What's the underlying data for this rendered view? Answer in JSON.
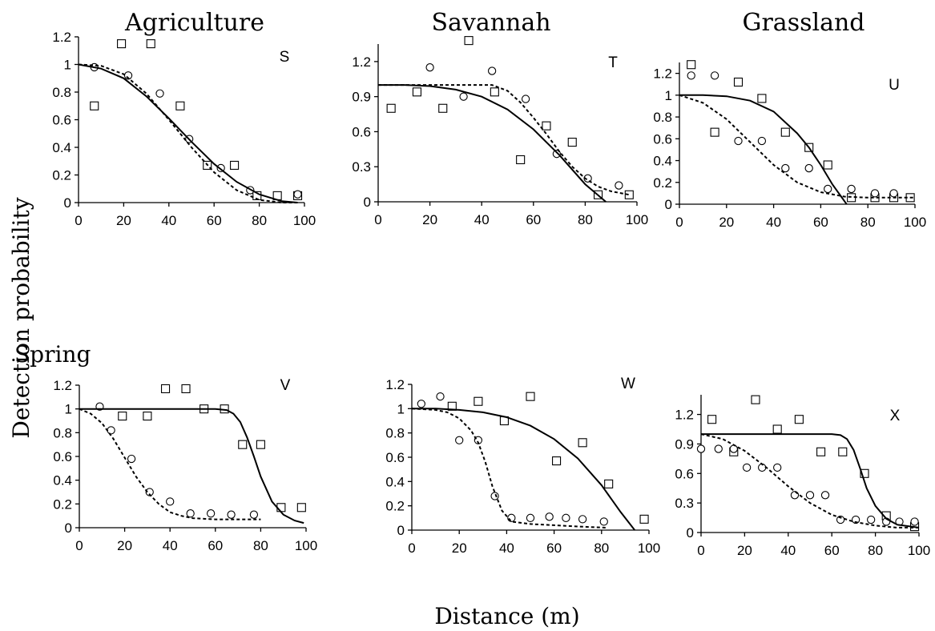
{
  "figure": {
    "column_headers": [
      "Agriculture",
      "Savannah",
      "Grassland"
    ],
    "row_header": "Spring",
    "ylabel": "Detection probability",
    "xlabel": "Distance (m)"
  },
  "chart_data": [
    {
      "type": "scatter",
      "panel": "S",
      "ylim": [
        0,
        1.2
      ],
      "yticks": [
        "0",
        "0.2",
        "0.4",
        "0.6",
        "0.8",
        "1",
        "1.2"
      ],
      "xlim": [
        0,
        100
      ],
      "xticks": [
        "0",
        "20",
        "40",
        "60",
        "80",
        "100"
      ],
      "series": [
        {
          "marker": "square",
          "x": [
            7,
            19,
            32,
            45,
            57,
            69,
            79,
            88,
            97
          ],
          "y": [
            0.7,
            1.15,
            1.15,
            0.7,
            0.27,
            0.27,
            0.05,
            0.05,
            0.05
          ]
        },
        {
          "marker": "circle",
          "x": [
            7,
            22,
            36,
            49,
            63,
            76,
            97
          ],
          "y": [
            0.98,
            0.92,
            0.79,
            0.46,
            0.25,
            0.09,
            0.06
          ]
        },
        {
          "line": "solid",
          "x": [
            0,
            10,
            20,
            30,
            40,
            50,
            60,
            70,
            80,
            90,
            97
          ],
          "y": [
            1.0,
            0.97,
            0.9,
            0.77,
            0.61,
            0.44,
            0.28,
            0.15,
            0.06,
            0.01,
            0.0
          ]
        },
        {
          "line": "dashed",
          "x": [
            0,
            10,
            20,
            30,
            40,
            50,
            60,
            70,
            80,
            90,
            97
          ],
          "y": [
            1.0,
            0.99,
            0.93,
            0.79,
            0.6,
            0.4,
            0.22,
            0.09,
            0.02,
            0.0,
            0.0
          ]
        }
      ]
    },
    {
      "type": "scatter",
      "panel": "T",
      "ylim": [
        0,
        1.35
      ],
      "yticks": [
        "0",
        "0.3",
        "0.6",
        "0.9",
        "1.2"
      ],
      "xlim": [
        0,
        100
      ],
      "xticks": [
        "0",
        "20",
        "40",
        "60",
        "80",
        "100"
      ],
      "series": [
        {
          "marker": "square",
          "x": [
            5,
            15,
            25,
            35,
            45,
            55,
            65,
            75,
            85,
            97
          ],
          "y": [
            0.8,
            0.94,
            0.8,
            1.38,
            0.94,
            0.36,
            0.65,
            0.51,
            0.06,
            0.06
          ]
        },
        {
          "marker": "circle",
          "x": [
            20,
            33,
            44,
            57,
            69,
            81,
            93
          ],
          "y": [
            1.15,
            0.9,
            1.12,
            0.88,
            0.41,
            0.2,
            0.14
          ]
        },
        {
          "line": "solid",
          "x": [
            0,
            10,
            20,
            30,
            40,
            50,
            60,
            70,
            80,
            88
          ],
          "y": [
            1.0,
            1.0,
            0.99,
            0.96,
            0.9,
            0.79,
            0.62,
            0.4,
            0.15,
            0.0
          ]
        },
        {
          "line": "dashed",
          "x": [
            0,
            20,
            44,
            50,
            55,
            60,
            65,
            70,
            75,
            80,
            85,
            90,
            97
          ],
          "y": [
            1.0,
            1.0,
            1.0,
            0.95,
            0.85,
            0.72,
            0.58,
            0.43,
            0.3,
            0.2,
            0.13,
            0.09,
            0.06
          ]
        }
      ]
    },
    {
      "type": "scatter",
      "panel": "U",
      "ylim": [
        0,
        1.3
      ],
      "yticks": [
        "0",
        "0.2",
        "0.4",
        "0.6",
        "0.8",
        "1",
        "1.2"
      ],
      "xlim": [
        0,
        100
      ],
      "xticks": [
        "0",
        "20",
        "40",
        "60",
        "80",
        "100"
      ],
      "series": [
        {
          "marker": "square",
          "x": [
            5,
            15,
            25,
            35,
            45,
            55,
            63,
            73,
            83,
            91,
            98
          ],
          "y": [
            1.28,
            0.66,
            1.12,
            0.97,
            0.66,
            0.52,
            0.36,
            0.06,
            0.06,
            0.06,
            0.06
          ]
        },
        {
          "marker": "circle",
          "x": [
            5,
            15,
            25,
            35,
            45,
            55,
            63,
            73,
            83,
            91
          ],
          "y": [
            1.18,
            1.18,
            0.58,
            0.58,
            0.33,
            0.33,
            0.14,
            0.14,
            0.1,
            0.1
          ]
        },
        {
          "line": "solid",
          "x": [
            0,
            10,
            20,
            30,
            40,
            50,
            55,
            60,
            65,
            71
          ],
          "y": [
            1.0,
            1.0,
            0.99,
            0.95,
            0.85,
            0.65,
            0.52,
            0.36,
            0.18,
            0.0
          ]
        },
        {
          "line": "dashed",
          "x": [
            0,
            10,
            20,
            30,
            40,
            50,
            60,
            70,
            80,
            100
          ],
          "y": [
            1.0,
            0.93,
            0.78,
            0.57,
            0.36,
            0.2,
            0.11,
            0.07,
            0.06,
            0.06
          ]
        }
      ]
    },
    {
      "type": "scatter",
      "panel": "V",
      "ylim": [
        0,
        1.2
      ],
      "yticks": [
        "0",
        "0.2",
        "0.4",
        "0.6",
        "0.8",
        "1",
        "1.2"
      ],
      "xlim": [
        0,
        100
      ],
      "xticks": [
        "0",
        "20",
        "40",
        "60",
        "80",
        "100"
      ],
      "series": [
        {
          "marker": "square",
          "x": [
            19,
            30,
            38,
            47,
            55,
            64,
            72,
            80,
            89,
            98
          ],
          "y": [
            0.94,
            0.94,
            1.17,
            1.17,
            1.0,
            1.0,
            0.7,
            0.7,
            0.17,
            0.17
          ]
        },
        {
          "marker": "circle",
          "x": [
            9,
            14,
            23,
            31,
            40,
            49,
            58,
            67,
            77
          ],
          "y": [
            1.02,
            0.82,
            0.58,
            0.3,
            0.22,
            0.12,
            0.12,
            0.11,
            0.11
          ]
        },
        {
          "line": "solid",
          "x": [
            0,
            20,
            40,
            60,
            65,
            68,
            71,
            74,
            77,
            80,
            85,
            90,
            95,
            99
          ],
          "y": [
            1.0,
            1.0,
            1.0,
            1.0,
            0.99,
            0.96,
            0.89,
            0.76,
            0.6,
            0.43,
            0.22,
            0.11,
            0.06,
            0.04
          ]
        },
        {
          "line": "dashed",
          "x": [
            0,
            5,
            10,
            15,
            20,
            25,
            30,
            35,
            40,
            45,
            50,
            60,
            70,
            80
          ],
          "y": [
            1.0,
            0.96,
            0.88,
            0.75,
            0.59,
            0.43,
            0.3,
            0.2,
            0.13,
            0.1,
            0.08,
            0.07,
            0.07,
            0.07
          ]
        }
      ]
    },
    {
      "type": "scatter",
      "panel": "W",
      "ylim": [
        0,
        1.2
      ],
      "yticks": [
        "0",
        "0.2",
        "0.4",
        "0.6",
        "0.8",
        "1",
        "1.2"
      ],
      "xlim": [
        0,
        100
      ],
      "xticks": [
        "0",
        "20",
        "40",
        "60",
        "80",
        "100"
      ],
      "series": [
        {
          "marker": "square",
          "x": [
            17,
            28,
            39,
            50,
            61,
            72,
            83,
            98
          ],
          "y": [
            1.02,
            1.06,
            0.9,
            1.1,
            0.57,
            0.72,
            0.38,
            0.09
          ]
        },
        {
          "marker": "circle",
          "x": [
            4,
            12,
            20,
            28,
            35,
            42,
            50,
            58,
            65,
            72,
            81
          ],
          "y": [
            1.04,
            1.1,
            0.74,
            0.74,
            0.28,
            0.1,
            0.1,
            0.11,
            0.1,
            0.09,
            0.07
          ]
        },
        {
          "line": "solid",
          "x": [
            0,
            10,
            20,
            30,
            40,
            50,
            60,
            70,
            80,
            88,
            94
          ],
          "y": [
            1.0,
            1.0,
            0.99,
            0.97,
            0.93,
            0.86,
            0.75,
            0.59,
            0.37,
            0.15,
            0.0
          ]
        },
        {
          "line": "dashed",
          "x": [
            0,
            10,
            15,
            20,
            25,
            28,
            31,
            34,
            38,
            42,
            50,
            60,
            70,
            82
          ],
          "y": [
            1.0,
            0.99,
            0.97,
            0.92,
            0.82,
            0.72,
            0.56,
            0.36,
            0.16,
            0.07,
            0.05,
            0.04,
            0.03,
            0.02
          ]
        }
      ]
    },
    {
      "type": "scatter",
      "panel": "X",
      "ylim": [
        0,
        1.4
      ],
      "yticks": [
        "0",
        "0.3",
        "0.6",
        "0.9",
        "1.2"
      ],
      "xlim": [
        0,
        100
      ],
      "xticks": [
        "0",
        "20",
        "40",
        "60",
        "80",
        "100"
      ],
      "series": [
        {
          "marker": "square",
          "x": [
            5,
            15,
            25,
            35,
            45,
            55,
            65,
            75,
            85,
            98
          ],
          "y": [
            1.15,
            0.82,
            1.35,
            1.05,
            1.15,
            0.82,
            0.82,
            0.6,
            0.17,
            0.06
          ]
        },
        {
          "marker": "circle",
          "x": [
            0,
            8,
            15,
            21,
            28,
            35,
            43,
            50,
            57,
            64,
            71,
            78,
            85,
            91,
            98
          ],
          "y": [
            0.85,
            0.85,
            0.85,
            0.66,
            0.66,
            0.66,
            0.38,
            0.38,
            0.38,
            0.13,
            0.13,
            0.13,
            0.11,
            0.11,
            0.11
          ]
        },
        {
          "line": "solid",
          "x": [
            0,
            20,
            40,
            60,
            64,
            67,
            70,
            73,
            76,
            80,
            85,
            90,
            100
          ],
          "y": [
            1.0,
            1.0,
            1.0,
            1.0,
            0.99,
            0.95,
            0.84,
            0.65,
            0.45,
            0.27,
            0.14,
            0.08,
            0.05
          ]
        },
        {
          "line": "dashed",
          "x": [
            0,
            10,
            20,
            30,
            40,
            50,
            60,
            70,
            80,
            90,
            100
          ],
          "y": [
            1.0,
            0.95,
            0.83,
            0.66,
            0.47,
            0.3,
            0.18,
            0.11,
            0.07,
            0.05,
            0.05
          ]
        }
      ]
    }
  ]
}
